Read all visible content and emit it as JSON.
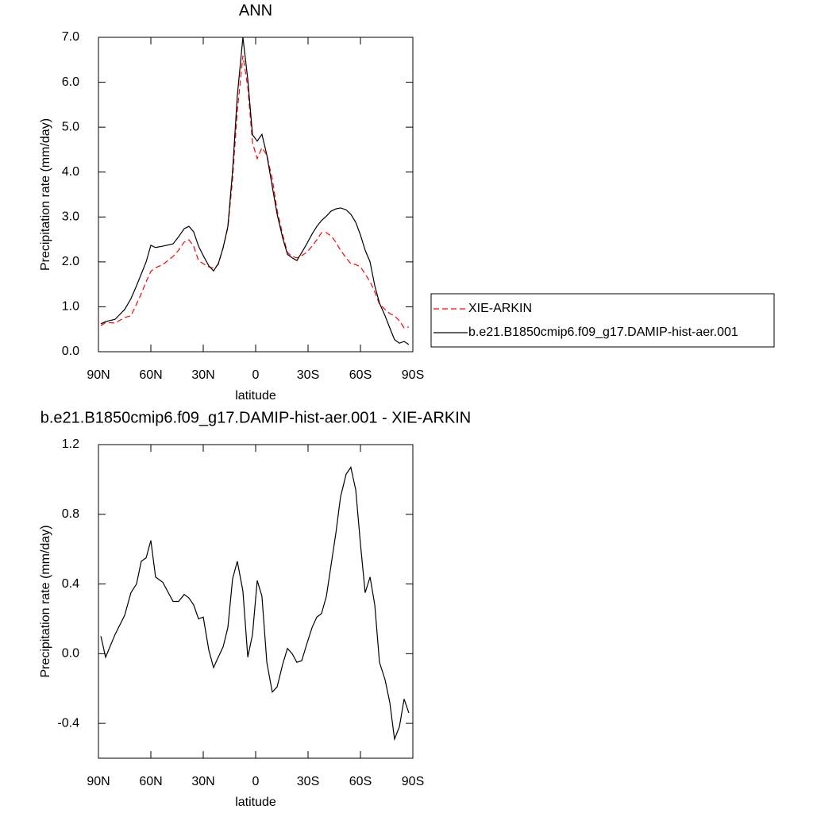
{
  "chart_data": [
    {
      "type": "line",
      "title": "ANN",
      "xlabel": "latitude",
      "ylabel": "Precipitation rate (mm/day)",
      "x": [
        88.6,
        85.9,
        80.5,
        75.0,
        71.4,
        68.2,
        65.5,
        62.7,
        60.0,
        57.3,
        53.2,
        47.3,
        44.1,
        40.9,
        38.2,
        35.5,
        32.7,
        30.0,
        26.8,
        24.1,
        21.4,
        18.6,
        15.9,
        13.2,
        10.5,
        7.3,
        4.5,
        1.8,
        -0.9,
        -3.6,
        -6.4,
        -9.5,
        -12.3,
        -15.5,
        -18.2,
        -20.9,
        -23.6,
        -26.4,
        -29.1,
        -32.3,
        -35.0,
        -37.7,
        -40.5,
        -43.2,
        -45.9,
        -48.6,
        -51.8,
        -54.5,
        -57.3,
        -60.0,
        -62.7,
        -65.5,
        -68.2,
        -70.9,
        -74.1,
        -76.8,
        -79.5,
        -82.3,
        -85.0,
        -87.7
      ],
      "series": [
        {
          "name": "XIE-ARKIN",
          "color": "#ff0000",
          "dashed": true,
          "values": [
            0.58,
            0.65,
            0.64,
            0.76,
            0.8,
            1.06,
            1.29,
            1.56,
            1.79,
            1.87,
            1.94,
            2.12,
            2.26,
            2.44,
            2.49,
            2.35,
            2.03,
            1.96,
            1.89,
            1.86,
            1.94,
            2.32,
            2.76,
            3.85,
            5.36,
            6.59,
            5.89,
            4.65,
            4.3,
            4.54,
            4.38,
            3.85,
            3.15,
            2.6,
            2.21,
            2.12,
            2.09,
            2.14,
            2.21,
            2.35,
            2.49,
            2.65,
            2.65,
            2.58,
            2.44,
            2.26,
            2.09,
            1.96,
            1.94,
            1.89,
            1.73,
            1.56,
            1.33,
            1.06,
            0.94,
            0.85,
            0.8,
            0.69,
            0.53,
            0.55
          ]
        },
        {
          "name": "b.e21.B1850cmip6.f09_g17.DAMIP-hist-aer.001",
          "color": "#000000",
          "dashed": false,
          "values": [
            0.62,
            0.67,
            0.72,
            0.94,
            1.18,
            1.47,
            1.73,
            2.0,
            2.37,
            2.32,
            2.35,
            2.4,
            2.56,
            2.74,
            2.79,
            2.67,
            2.35,
            2.14,
            1.91,
            1.8,
            1.96,
            2.32,
            2.79,
            4.03,
            5.7,
            7.0,
            6.06,
            4.83,
            4.69,
            4.84,
            4.38,
            3.68,
            3.06,
            2.53,
            2.17,
            2.09,
            2.03,
            2.21,
            2.39,
            2.62,
            2.79,
            2.92,
            3.02,
            3.13,
            3.18,
            3.2,
            3.16,
            3.06,
            2.88,
            2.6,
            2.26,
            2.0,
            1.47,
            1.08,
            0.8,
            0.53,
            0.27,
            0.19,
            0.23,
            0.16
          ]
        }
      ],
      "xlim": [
        90,
        -90
      ],
      "xticks": [
        {
          "value": 90,
          "label": "90N"
        },
        {
          "value": 60,
          "label": "60N"
        },
        {
          "value": 30,
          "label": "30N"
        },
        0,
        {
          "value": -30,
          "label": "30S"
        },
        {
          "value": -60,
          "label": "60S"
        },
        {
          "value": -90,
          "label": "90S"
        }
      ],
      "ylim": [
        0,
        7
      ],
      "yticks": [
        {
          "value": 0,
          "label": "0.0"
        },
        {
          "value": 1,
          "label": "1.0"
        },
        {
          "value": 2,
          "label": "2.0"
        },
        {
          "value": 3,
          "label": "3.0"
        },
        {
          "value": 4,
          "label": "4.0"
        },
        {
          "value": 5,
          "label": "5.0"
        },
        {
          "value": 6,
          "label": "6.0"
        },
        {
          "value": 7,
          "label": "7.0"
        }
      ],
      "legend": "right"
    },
    {
      "type": "line",
      "title": "b.e21.B1850cmip6.f09_g17.DAMIP-hist-aer.001 - XIE-ARKIN",
      "xlabel": "latitude",
      "ylabel": "Precipitation rate (mm/day)",
      "x": [
        88.6,
        85.9,
        80.5,
        75.0,
        71.4,
        68.2,
        65.5,
        62.7,
        60.0,
        57.3,
        53.2,
        47.3,
        44.1,
        40.9,
        38.2,
        35.5,
        32.7,
        30.0,
        26.8,
        24.1,
        21.4,
        18.6,
        15.9,
        13.2,
        10.5,
        7.3,
        4.5,
        1.8,
        -0.9,
        -3.6,
        -6.4,
        -9.5,
        -12.3,
        -15.5,
        -18.2,
        -20.9,
        -23.6,
        -26.4,
        -29.1,
        -32.3,
        -35.0,
        -37.7,
        -40.5,
        -43.2,
        -45.9,
        -48.6,
        -51.8,
        -54.5,
        -57.3,
        -60.0,
        -62.7,
        -65.5,
        -68.2,
        -70.9,
        -74.1,
        -76.8,
        -79.5,
        -82.3,
        -85.0,
        -87.7
      ],
      "series": [
        {
          "color": "#000000",
          "dashed": false,
          "values": [
            0.1,
            -0.02,
            0.11,
            0.22,
            0.35,
            0.4,
            0.53,
            0.55,
            0.65,
            0.44,
            0.41,
            0.3,
            0.3,
            0.34,
            0.32,
            0.28,
            0.2,
            0.21,
            0.02,
            -0.08,
            -0.02,
            0.04,
            0.15,
            0.43,
            0.53,
            0.36,
            -0.02,
            0.11,
            0.42,
            0.33,
            -0.05,
            -0.22,
            -0.19,
            -0.06,
            0.03,
            0.0,
            -0.05,
            -0.04,
            0.05,
            0.15,
            0.21,
            0.23,
            0.33,
            0.51,
            0.69,
            0.9,
            1.03,
            1.07,
            0.94,
            0.63,
            0.35,
            0.44,
            0.28,
            -0.05,
            -0.15,
            -0.28,
            -0.49,
            -0.42,
            -0.26,
            -0.34
          ]
        }
      ],
      "xlim": [
        90,
        -90
      ],
      "xticks": [
        {
          "value": 90,
          "label": "90N"
        },
        {
          "value": 60,
          "label": "60N"
        },
        {
          "value": 30,
          "label": "30N"
        },
        0,
        {
          "value": -30,
          "label": "30S"
        },
        {
          "value": -60,
          "label": "60S"
        },
        {
          "value": -90,
          "label": "90S"
        }
      ],
      "ylim": [
        -0.6,
        1.2
      ],
      "yticks": [
        1.2,
        0.8,
        0.4,
        {
          "value": 0,
          "label": "0.0"
        },
        -0.4
      ]
    }
  ]
}
